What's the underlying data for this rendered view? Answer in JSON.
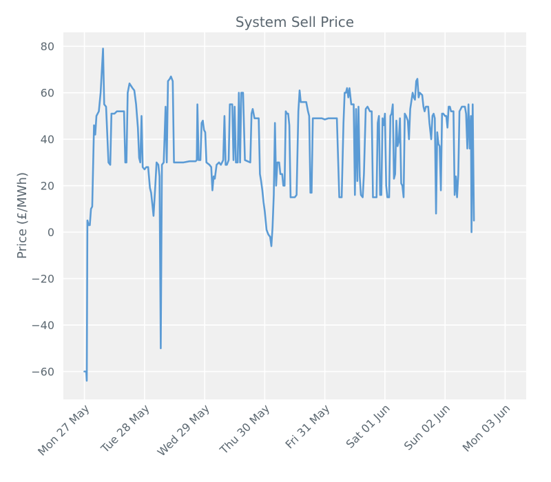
{
  "chart_data": {
    "type": "line",
    "title": "System Sell Price",
    "xlabel": "",
    "ylabel": "Price (£/MWh)",
    "ylim": [
      -72,
      86
    ],
    "xlim": [
      -0.35,
      7.35
    ],
    "grid": true,
    "colors": {
      "background": "#f0f0f0",
      "line": "#5b9bd5",
      "grid": "#ffffff",
      "text": "#5b6770"
    },
    "y_ticks": [
      {
        "value": 80,
        "label": "80"
      },
      {
        "value": 60,
        "label": "60"
      },
      {
        "value": 40,
        "label": "40"
      },
      {
        "value": 20,
        "label": "20"
      },
      {
        "value": 0,
        "label": "0"
      },
      {
        "value": -20,
        "label": "−20"
      },
      {
        "value": -40,
        "label": "−40"
      },
      {
        "value": -60,
        "label": "−60"
      }
    ],
    "x_ticks": [
      {
        "value": 0,
        "label": "Mon 27 May"
      },
      {
        "value": 1,
        "label": "Tue 28 May"
      },
      {
        "value": 2,
        "label": "Wed 29 May"
      },
      {
        "value": 3,
        "label": "Thu 30 May"
      },
      {
        "value": 4,
        "label": "Fri 31 May"
      },
      {
        "value": 5,
        "label": "Sat 01 Jun"
      },
      {
        "value": 6,
        "label": "Sun 02 Jun"
      },
      {
        "value": 7,
        "label": "Mon 03 Jun"
      }
    ],
    "series": [
      {
        "name": "System Sell Price",
        "x_unit": "days since Mon 27 May 00:00",
        "points": [
          [
            0.0,
            -60
          ],
          [
            0.03,
            -60
          ],
          [
            0.04,
            -64
          ],
          [
            0.05,
            5
          ],
          [
            0.07,
            3
          ],
          [
            0.09,
            3
          ],
          [
            0.11,
            10
          ],
          [
            0.13,
            11
          ],
          [
            0.16,
            46
          ],
          [
            0.18,
            42
          ],
          [
            0.2,
            50
          ],
          [
            0.24,
            52
          ],
          [
            0.27,
            60
          ],
          [
            0.31,
            79
          ],
          [
            0.33,
            55
          ],
          [
            0.36,
            54
          ],
          [
            0.4,
            30
          ],
          [
            0.43,
            29
          ],
          [
            0.45,
            51
          ],
          [
            0.5,
            51
          ],
          [
            0.54,
            52
          ],
          [
            0.66,
            52
          ],
          [
            0.68,
            30
          ],
          [
            0.7,
            30
          ],
          [
            0.72,
            60
          ],
          [
            0.75,
            64
          ],
          [
            0.8,
            62
          ],
          [
            0.83,
            61
          ],
          [
            0.86,
            55
          ],
          [
            0.89,
            45
          ],
          [
            0.91,
            32
          ],
          [
            0.93,
            30
          ],
          [
            0.95,
            50
          ],
          [
            0.97,
            28
          ],
          [
            1.0,
            27
          ],
          [
            1.03,
            28
          ],
          [
            1.06,
            28
          ],
          [
            1.09,
            19
          ],
          [
            1.11,
            17
          ],
          [
            1.13,
            12
          ],
          [
            1.15,
            7
          ],
          [
            1.18,
            20
          ],
          [
            1.2,
            30
          ],
          [
            1.23,
            29
          ],
          [
            1.25,
            24
          ],
          [
            1.27,
            -50
          ],
          [
            1.29,
            29
          ],
          [
            1.32,
            30
          ],
          [
            1.35,
            54
          ],
          [
            1.37,
            30
          ],
          [
            1.39,
            65
          ],
          [
            1.42,
            66
          ],
          [
            1.44,
            67
          ],
          [
            1.47,
            65
          ],
          [
            1.49,
            30
          ],
          [
            1.55,
            30
          ],
          [
            1.65,
            30
          ],
          [
            1.75,
            30.5
          ],
          [
            1.85,
            30.5
          ],
          [
            1.87,
            31
          ],
          [
            1.88,
            55
          ],
          [
            1.9,
            31
          ],
          [
            1.93,
            31
          ],
          [
            1.95,
            47
          ],
          [
            1.97,
            48
          ],
          [
            1.99,
            44
          ],
          [
            2.01,
            43
          ],
          [
            2.03,
            30
          ],
          [
            2.08,
            29
          ],
          [
            2.11,
            28
          ],
          [
            2.13,
            18
          ],
          [
            2.15,
            24
          ],
          [
            2.17,
            23
          ],
          [
            2.2,
            29
          ],
          [
            2.24,
            30
          ],
          [
            2.27,
            29
          ],
          [
            2.29,
            30
          ],
          [
            2.31,
            31
          ],
          [
            2.33,
            50
          ],
          [
            2.35,
            29
          ],
          [
            2.37,
            29
          ],
          [
            2.4,
            31
          ],
          [
            2.42,
            55
          ],
          [
            2.46,
            55
          ],
          [
            2.48,
            31
          ],
          [
            2.5,
            54
          ],
          [
            2.52,
            30
          ],
          [
            2.55,
            30
          ],
          [
            2.57,
            60
          ],
          [
            2.59,
            30
          ],
          [
            2.61,
            60
          ],
          [
            2.64,
            60
          ],
          [
            2.67,
            31
          ],
          [
            2.76,
            30
          ],
          [
            2.78,
            51
          ],
          [
            2.8,
            53
          ],
          [
            2.83,
            49
          ],
          [
            2.9,
            49
          ],
          [
            2.92,
            25
          ],
          [
            2.94,
            22
          ],
          [
            2.96,
            18
          ],
          [
            2.98,
            13
          ],
          [
            3.0,
            9
          ],
          [
            3.03,
            1
          ],
          [
            3.06,
            -1
          ],
          [
            3.09,
            -2
          ],
          [
            3.11,
            -6
          ],
          [
            3.13,
            2
          ],
          [
            3.15,
            16
          ],
          [
            3.17,
            47
          ],
          [
            3.19,
            20
          ],
          [
            3.21,
            30
          ],
          [
            3.24,
            30
          ],
          [
            3.26,
            25
          ],
          [
            3.29,
            25
          ],
          [
            3.31,
            20
          ],
          [
            3.33,
            20
          ],
          [
            3.35,
            52
          ],
          [
            3.37,
            51
          ],
          [
            3.39,
            51
          ],
          [
            3.41,
            46
          ],
          [
            3.43,
            15
          ],
          [
            3.5,
            15
          ],
          [
            3.53,
            16
          ],
          [
            3.56,
            52
          ],
          [
            3.58,
            61
          ],
          [
            3.6,
            56
          ],
          [
            3.64,
            56
          ],
          [
            3.69,
            56
          ],
          [
            3.72,
            52
          ],
          [
            3.74,
            50
          ],
          [
            3.76,
            17
          ],
          [
            3.78,
            17
          ],
          [
            3.8,
            49
          ],
          [
            3.85,
            49
          ],
          [
            3.95,
            49
          ],
          [
            4.0,
            48.5
          ],
          [
            4.06,
            49
          ],
          [
            4.1,
            49
          ],
          [
            4.13,
            49
          ],
          [
            4.15,
            49
          ],
          [
            4.2,
            49
          ],
          [
            4.24,
            15
          ],
          [
            4.28,
            15
          ],
          [
            4.31,
            47
          ],
          [
            4.33,
            60
          ],
          [
            4.35,
            60
          ],
          [
            4.37,
            62
          ],
          [
            4.39,
            58
          ],
          [
            4.41,
            62
          ],
          [
            4.44,
            55
          ],
          [
            4.48,
            55
          ],
          [
            4.5,
            16
          ],
          [
            4.52,
            53
          ],
          [
            4.54,
            22
          ],
          [
            4.56,
            54
          ],
          [
            4.58,
            24
          ],
          [
            4.6,
            16
          ],
          [
            4.63,
            15
          ],
          [
            4.65,
            25
          ],
          [
            4.68,
            53
          ],
          [
            4.71,
            54
          ],
          [
            4.75,
            52
          ],
          [
            4.78,
            52
          ],
          [
            4.8,
            15
          ],
          [
            4.86,
            15
          ],
          [
            4.88,
            47
          ],
          [
            4.9,
            50
          ],
          [
            4.92,
            16
          ],
          [
            4.94,
            16
          ],
          [
            4.96,
            49
          ],
          [
            4.98,
            46
          ],
          [
            5.0,
            51
          ],
          [
            5.02,
            20
          ],
          [
            5.04,
            15
          ],
          [
            5.07,
            15
          ],
          [
            5.09,
            50
          ],
          [
            5.11,
            51
          ],
          [
            5.13,
            55
          ],
          [
            5.15,
            23
          ],
          [
            5.17,
            25
          ],
          [
            5.19,
            48
          ],
          [
            5.21,
            37
          ],
          [
            5.23,
            39
          ],
          [
            5.25,
            49
          ],
          [
            5.27,
            21
          ],
          [
            5.29,
            20
          ],
          [
            5.31,
            15
          ],
          [
            5.33,
            51
          ],
          [
            5.35,
            50
          ],
          [
            5.38,
            48
          ],
          [
            5.4,
            40
          ],
          [
            5.42,
            53
          ],
          [
            5.46,
            60
          ],
          [
            5.48,
            58
          ],
          [
            5.5,
            57
          ],
          [
            5.52,
            65
          ],
          [
            5.54,
            66
          ],
          [
            5.56,
            58
          ],
          [
            5.58,
            60
          ],
          [
            5.62,
            59
          ],
          [
            5.64,
            54
          ],
          [
            5.66,
            52
          ],
          [
            5.68,
            54
          ],
          [
            5.72,
            54
          ],
          [
            5.74,
            47
          ],
          [
            5.77,
            40
          ],
          [
            5.79,
            50
          ],
          [
            5.81,
            51
          ],
          [
            5.83,
            49
          ],
          [
            5.85,
            8
          ],
          [
            5.87,
            43
          ],
          [
            5.89,
            38
          ],
          [
            5.91,
            37
          ],
          [
            5.93,
            18
          ],
          [
            5.95,
            51
          ],
          [
            5.97,
            51
          ],
          [
            6.0,
            50
          ],
          [
            6.02,
            50
          ],
          [
            6.04,
            45
          ],
          [
            6.06,
            54
          ],
          [
            6.08,
            54
          ],
          [
            6.1,
            52
          ],
          [
            6.14,
            52
          ],
          [
            6.16,
            16
          ],
          [
            6.18,
            24
          ],
          [
            6.2,
            15
          ],
          [
            6.22,
            25
          ],
          [
            6.24,
            52
          ],
          [
            6.26,
            53
          ],
          [
            6.28,
            54
          ],
          [
            6.33,
            54
          ],
          [
            6.35,
            51
          ],
          [
            6.37,
            36
          ],
          [
            6.39,
            55
          ],
          [
            6.41,
            36
          ],
          [
            6.43,
            50
          ],
          [
            6.44,
            0
          ],
          [
            6.46,
            55
          ],
          [
            6.48,
            5
          ]
        ]
      }
    ]
  }
}
